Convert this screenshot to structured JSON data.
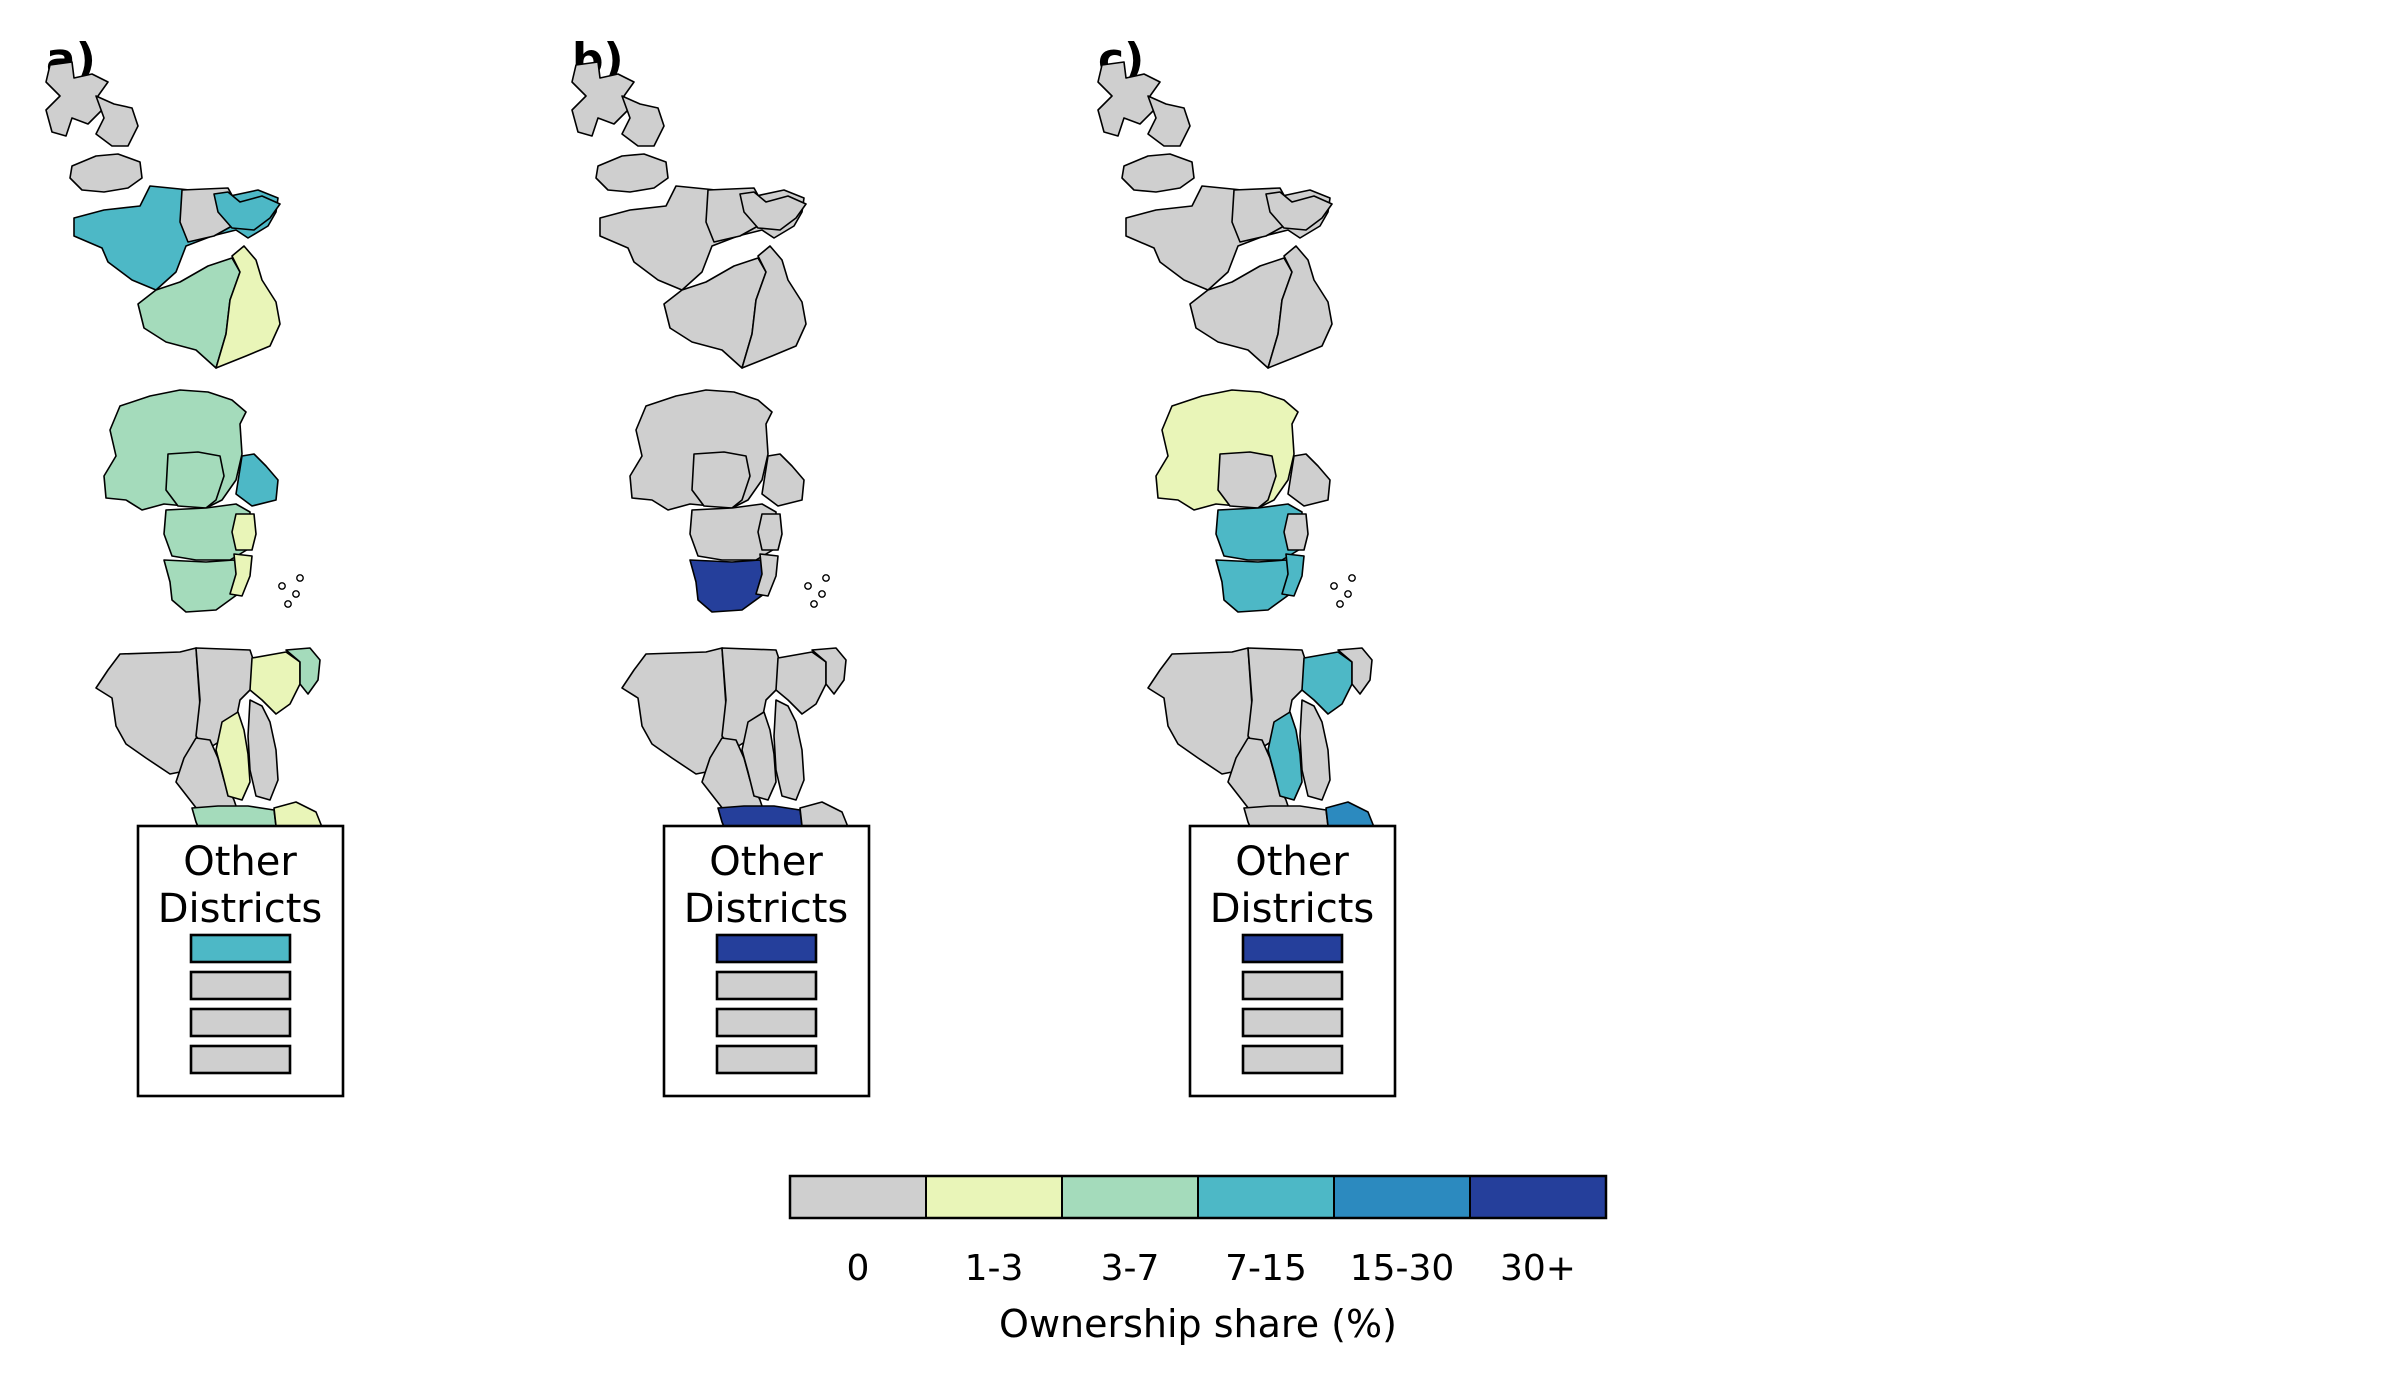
{
  "panels": [
    {
      "label": "a)",
      "inset_title_line1": "Other",
      "inset_title_line2": "Districts",
      "inset_classes": [
        "7-15",
        "0",
        "0",
        "0"
      ],
      "district_classes": {
        "n1": "0",
        "n2": "0",
        "n3": "0",
        "n4": "7-15",
        "n5": "0",
        "n6": "7-15",
        "n7": "3-7",
        "n8": "1-3",
        "c1": "3-7",
        "c2": "3-7",
        "c3": "7-15",
        "c4": "3-7",
        "c5": "1-3",
        "c6": "3-7",
        "c7": "1-3",
        "m1": "0",
        "m2": "0",
        "m3": "0",
        "m4": "1-3",
        "m5": "3-7",
        "m6": "1-3",
        "m7": "0",
        "s1": "3-7",
        "s2": "1-3",
        "s3": "0",
        "s4": "1-3",
        "s5": "0",
        "s6": "3-7"
      }
    },
    {
      "label": "b)",
      "inset_title_line1": "Other",
      "inset_title_line2": "Districts",
      "inset_classes": [
        "30+",
        "0",
        "0",
        "0"
      ],
      "district_classes": {
        "n1": "0",
        "n2": "0",
        "n3": "0",
        "n4": "0",
        "n5": "0",
        "n6": "0",
        "n7": "0",
        "n8": "0",
        "c1": "0",
        "c2": "0",
        "c3": "0",
        "c4": "0",
        "c5": "0",
        "c6": "30+",
        "c7": "0",
        "m1": "0",
        "m2": "0",
        "m3": "0",
        "m4": "0",
        "m5": "0",
        "m6": "0",
        "m7": "0",
        "s1": "30+",
        "s2": "0",
        "s3": "0",
        "s4": "0",
        "s5": "0",
        "s6": "0"
      }
    },
    {
      "label": "c)",
      "inset_title_line1": "Other",
      "inset_title_line2": "Districts",
      "inset_classes": [
        "30+",
        "0",
        "0",
        "0"
      ],
      "district_classes": {
        "n1": "0",
        "n2": "0",
        "n3": "0",
        "n4": "0",
        "n5": "0",
        "n6": "0",
        "n7": "0",
        "n8": "0",
        "c1": "1-3",
        "c2": "0",
        "c3": "0",
        "c4": "7-15",
        "c5": "0",
        "c6": "7-15",
        "c7": "7-15",
        "m1": "0",
        "m2": "0",
        "m3": "0",
        "m4": "7-15",
        "m5": "0",
        "m6": "7-15",
        "m7": "0",
        "s1": "0",
        "s2": "15-30",
        "s3": "0",
        "s4": "1-3",
        "s5": "0",
        "s6": "0"
      }
    }
  ],
  "legend": {
    "classes": [
      {
        "label": "0",
        "color": "#cfcfcf"
      },
      {
        "label": "1-3",
        "color": "#e9f5b8"
      },
      {
        "label": "3-7",
        "color": "#a4dbbb"
      },
      {
        "label": "7-15",
        "color": "#4db8c6"
      },
      {
        "label": "15-30",
        "color": "#2c8abf"
      },
      {
        "label": "30+",
        "color": "#253f9b"
      }
    ],
    "axis_label": "Ownership share (%)"
  }
}
